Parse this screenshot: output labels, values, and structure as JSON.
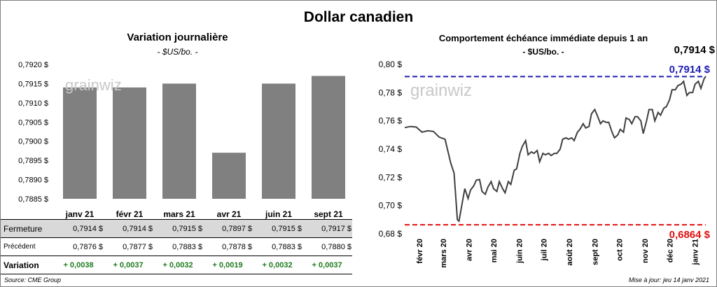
{
  "title": "Dollar canadien",
  "left": {
    "title": "Variation  journalière",
    "subtitle": "- $US/bo. -",
    "watermark": "grainwiz"
  },
  "right": {
    "title": "Comportement échéance immédiate depuis 1 an",
    "subtitle": "- $US/bo. -",
    "last_value": "0,7914 $",
    "watermark": "grainwiz",
    "high_label": "0,7914 $",
    "low_label": "0,6864 $"
  },
  "table": {
    "rows": [
      {
        "label": "Fermeture",
        "values": [
          "0,7914  $",
          "0,7914  $",
          "0,7915  $",
          "0,7897  $",
          "0,7915  $",
          "0,7917  $"
        ]
      },
      {
        "label": "Précédent",
        "values": [
          "0,7876  $",
          "0,7877  $",
          "0,7883  $",
          "0,7878  $",
          "0,7883  $",
          "0,7880  $"
        ]
      },
      {
        "label": "Variation",
        "values": [
          "+ 0,0038",
          "+ 0,0037",
          "+ 0,0032",
          "+ 0,0019",
          "+ 0,0032",
          "+ 0,0037"
        ]
      }
    ]
  },
  "footer": {
    "source": "Source: CME Group",
    "update": "Mise à jour: jeu 14 janv 2021"
  },
  "colors": {
    "bar": "#808080",
    "line": "#404040",
    "high": "#1f1fb4",
    "low": "#e01010",
    "positive": "#1e7b1e"
  },
  "chart_data": [
    {
      "type": "bar",
      "categories": [
        "janv 21",
        "févr 21",
        "mars 21",
        "avr 21",
        "juin 21",
        "sept 21"
      ],
      "values": [
        0.7914,
        0.7914,
        0.7915,
        0.7897,
        0.7915,
        0.7917
      ],
      "ylim": [
        0.7885,
        0.792
      ],
      "yticks": [
        0.792,
        0.7915,
        0.791,
        0.7905,
        0.79,
        0.7895,
        0.789,
        0.7885
      ],
      "ytick_labels": [
        "0,7920 $",
        "0,7915 $",
        "0,7910 $",
        "0,7905 $",
        "0,7900 $",
        "0,7895 $",
        "0,7890 $",
        "0,7885 $"
      ],
      "grid": false
    },
    {
      "type": "line",
      "x_start": "2020-01-14",
      "x_end": "2021-01-14",
      "xtick_labels": [
        "févr 20",
        "mars 20",
        "avr 20",
        "mai 20",
        "juin 20",
        "juil 20",
        "août 20",
        "sept 20",
        "oct 20",
        "nov 20",
        "déc 20",
        "janv 21"
      ],
      "xtick_dates": [
        "2020-02-01",
        "2020-03-01",
        "2020-04-01",
        "2020-05-01",
        "2020-06-01",
        "2020-07-01",
        "2020-08-01",
        "2020-09-01",
        "2020-10-01",
        "2020-11-01",
        "2020-12-01",
        "2021-01-01"
      ],
      "ylim": [
        0.68,
        0.8
      ],
      "yticks": [
        0.8,
        0.78,
        0.76,
        0.74,
        0.72,
        0.7,
        0.68
      ],
      "ytick_labels": [
        "0,80 $",
        "0,78 $",
        "0,76 $",
        "0,74 $",
        "0,72 $",
        "0,70 $",
        "0,68 $"
      ],
      "reference_lines": [
        {
          "value": 0.7914,
          "style": "dashed",
          "color": "#1f1fb4"
        },
        {
          "value": 0.6864,
          "style": "dashed",
          "color": "#e01010"
        }
      ],
      "points": [
        [
          "2020-01-14",
          0.7552
        ],
        [
          "2020-01-21",
          0.756
        ],
        [
          "2020-01-28",
          0.7556
        ],
        [
          "2020-02-04",
          0.752
        ],
        [
          "2020-02-11",
          0.753
        ],
        [
          "2020-02-18",
          0.7525
        ],
        [
          "2020-02-25",
          0.7485
        ],
        [
          "2020-03-03",
          0.747
        ],
        [
          "2020-03-10",
          0.73
        ],
        [
          "2020-03-14",
          0.723
        ],
        [
          "2020-03-18",
          0.69
        ],
        [
          "2020-03-20",
          0.689
        ],
        [
          "2020-03-24",
          0.702
        ],
        [
          "2020-03-27",
          0.712
        ],
        [
          "2020-03-31",
          0.705
        ],
        [
          "2020-04-03",
          0.711
        ],
        [
          "2020-04-07",
          0.714
        ],
        [
          "2020-04-10",
          0.718
        ],
        [
          "2020-04-14",
          0.7185
        ],
        [
          "2020-04-17",
          0.71
        ],
        [
          "2020-04-21",
          0.708
        ],
        [
          "2020-04-24",
          0.713
        ],
        [
          "2020-04-28",
          0.717
        ],
        [
          "2020-05-01",
          0.712
        ],
        [
          "2020-05-05",
          0.71
        ],
        [
          "2020-05-08",
          0.717
        ],
        [
          "2020-05-12",
          0.712
        ],
        [
          "2020-05-15",
          0.709
        ],
        [
          "2020-05-19",
          0.717
        ],
        [
          "2020-05-22",
          0.715
        ],
        [
          "2020-05-26",
          0.725
        ],
        [
          "2020-05-29",
          0.726
        ],
        [
          "2020-06-02",
          0.737
        ],
        [
          "2020-06-05",
          0.742
        ],
        [
          "2020-06-09",
          0.746
        ],
        [
          "2020-06-12",
          0.736
        ],
        [
          "2020-06-16",
          0.738
        ],
        [
          "2020-06-19",
          0.737
        ],
        [
          "2020-06-23",
          0.739
        ],
        [
          "2020-06-26",
          0.731
        ],
        [
          "2020-06-30",
          0.737
        ],
        [
          "2020-07-03",
          0.736
        ],
        [
          "2020-07-07",
          0.737
        ],
        [
          "2020-07-10",
          0.7355
        ],
        [
          "2020-07-14",
          0.737
        ],
        [
          "2020-07-17",
          0.737
        ],
        [
          "2020-07-21",
          0.74
        ],
        [
          "2020-07-24",
          0.747
        ],
        [
          "2020-07-28",
          0.748
        ],
        [
          "2020-07-31",
          0.747
        ],
        [
          "2020-08-04",
          0.748
        ],
        [
          "2020-08-07",
          0.746
        ],
        [
          "2020-08-11",
          0.752
        ],
        [
          "2020-08-14",
          0.754
        ],
        [
          "2020-08-18",
          0.758
        ],
        [
          "2020-08-21",
          0.755
        ],
        [
          "2020-08-25",
          0.756
        ],
        [
          "2020-08-28",
          0.765
        ],
        [
          "2020-09-01",
          0.768
        ],
        [
          "2020-09-04",
          0.764
        ],
        [
          "2020-09-08",
          0.758
        ],
        [
          "2020-09-11",
          0.76
        ],
        [
          "2020-09-15",
          0.759
        ],
        [
          "2020-09-18",
          0.759
        ],
        [
          "2020-09-22",
          0.752
        ],
        [
          "2020-09-25",
          0.748
        ],
        [
          "2020-09-29",
          0.75
        ],
        [
          "2020-10-02",
          0.754
        ],
        [
          "2020-10-06",
          0.752
        ],
        [
          "2020-10-09",
          0.762
        ],
        [
          "2020-10-13",
          0.761
        ],
        [
          "2020-10-16",
          0.758
        ],
        [
          "2020-10-20",
          0.763
        ],
        [
          "2020-10-23",
          0.763
        ],
        [
          "2020-10-27",
          0.76
        ],
        [
          "2020-10-30",
          0.751
        ],
        [
          "2020-11-03",
          0.76
        ],
        [
          "2020-11-06",
          0.768
        ],
        [
          "2020-11-10",
          0.768
        ],
        [
          "2020-11-13",
          0.76
        ],
        [
          "2020-11-17",
          0.766
        ],
        [
          "2020-11-20",
          0.764
        ],
        [
          "2020-11-24",
          0.769
        ],
        [
          "2020-11-27",
          0.77
        ],
        [
          "2020-12-01",
          0.775
        ],
        [
          "2020-12-04",
          0.782
        ],
        [
          "2020-12-08",
          0.782
        ],
        [
          "2020-12-11",
          0.785
        ],
        [
          "2020-12-15",
          0.786
        ],
        [
          "2020-12-18",
          0.788
        ],
        [
          "2020-12-22",
          0.778
        ],
        [
          "2020-12-25",
          0.78
        ],
        [
          "2020-12-29",
          0.78
        ],
        [
          "2021-01-01",
          0.786
        ],
        [
          "2021-01-05",
          0.788
        ],
        [
          "2021-01-08",
          0.783
        ],
        [
          "2021-01-12",
          0.79
        ],
        [
          "2021-01-14",
          0.7914
        ]
      ],
      "grid": false
    }
  ]
}
